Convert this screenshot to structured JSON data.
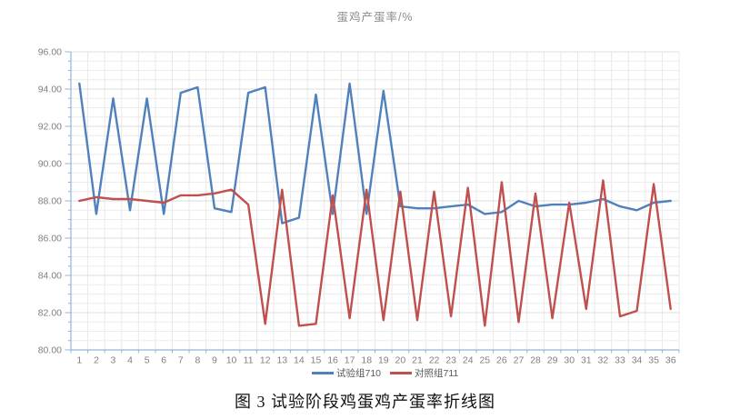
{
  "page": {
    "caption": "图 3 试验阶段鸡蛋鸡产蛋率折线图"
  },
  "chart_data": {
    "type": "line",
    "title": "蛋鸡产蛋率/%",
    "x": [
      1,
      2,
      3,
      4,
      5,
      6,
      7,
      8,
      9,
      10,
      11,
      12,
      13,
      14,
      15,
      16,
      17,
      18,
      19,
      20,
      21,
      22,
      23,
      24,
      25,
      26,
      27,
      28,
      29,
      30,
      31,
      32,
      33,
      34,
      35,
      36
    ],
    "series": [
      {
        "name": "试验组710",
        "color": "#4F81BD",
        "values": [
          94.3,
          87.3,
          93.5,
          87.5,
          93.5,
          87.3,
          93.8,
          94.1,
          87.6,
          87.4,
          93.8,
          94.1,
          86.8,
          87.1,
          93.7,
          87.3,
          94.3,
          87.3,
          93.9,
          87.7,
          87.6,
          87.6,
          87.7,
          87.8,
          87.3,
          87.4,
          88.0,
          87.7,
          87.8,
          87.8,
          87.9,
          88.1,
          87.7,
          87.5,
          87.9,
          88.0
        ]
      },
      {
        "name": "对照组711",
        "color": "#C0504D",
        "values": [
          88.0,
          88.2,
          88.1,
          88.1,
          88.0,
          87.9,
          88.3,
          88.3,
          88.4,
          88.6,
          87.8,
          81.4,
          88.6,
          81.3,
          81.4,
          88.3,
          81.7,
          88.6,
          81.6,
          88.5,
          81.6,
          88.5,
          81.8,
          88.7,
          81.3,
          89.0,
          81.5,
          88.4,
          81.7,
          87.9,
          82.2,
          89.1,
          81.8,
          82.1,
          88.9,
          82.2
        ]
      }
    ],
    "ylim": [
      80,
      96
    ],
    "ytick_step": 2,
    "ytick_minor_step": 0.5,
    "ytick_decimals": 2,
    "xlabel": "",
    "ylabel": "",
    "legend_position": "bottom",
    "grid": true,
    "axis_color": "#95B3D7",
    "grid_major_color": "#DCDCDC",
    "grid_minor_color": "#ECECEC",
    "grid_vertical_color": "#E9E9E9",
    "tick_label_color": "#7F7F7F",
    "title_color": "#8C8C8C"
  }
}
